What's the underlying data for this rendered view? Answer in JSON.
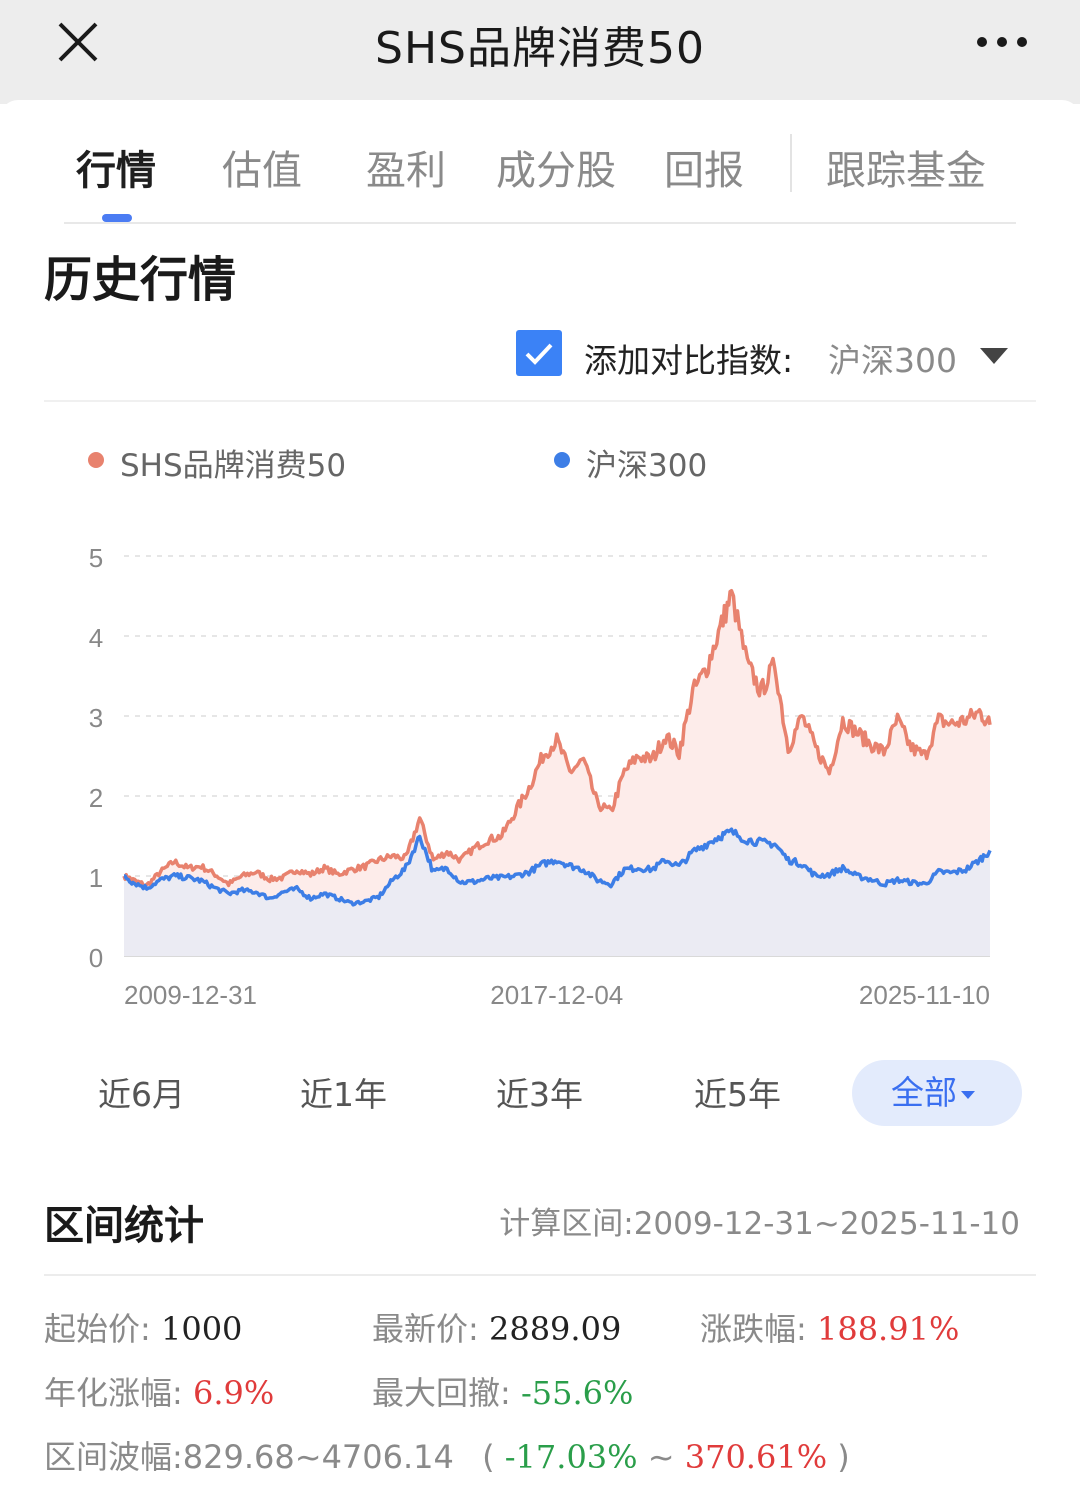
{
  "header": {
    "title": "SHS品牌消费50"
  },
  "tabs": [
    "行情",
    "估值",
    "盈利",
    "成分股",
    "回报",
    "跟踪基金"
  ],
  "section_title": "历史行情",
  "compare": {
    "label": "添加对比指数:",
    "selected": "沪深300",
    "checked": true
  },
  "colors": {
    "accent": "#3b82f6",
    "series_main": "#e8826e",
    "series_compare": "#3d7ee6",
    "up": "#e03b3b",
    "down": "#2a9e4a"
  },
  "chart_data": {
    "type": "line",
    "series": [
      {
        "name": "SHS品牌消费50",
        "color": "#e8826e",
        "x": [
          "2009-12-31",
          "2010-03-01",
          "2010-06-01",
          "2010-09-01",
          "2010-12-01",
          "2011-03-01",
          "2011-06-01",
          "2011-09-01",
          "2011-12-01",
          "2012-03-01",
          "2012-06-01",
          "2012-09-01",
          "2012-12-01",
          "2013-03-01",
          "2013-06-01",
          "2013-09-01",
          "2013-12-01",
          "2014-03-01",
          "2014-06-01",
          "2014-09-01",
          "2014-12-01",
          "2015-03-01",
          "2015-06-01",
          "2015-09-01",
          "2015-12-01",
          "2016-03-01",
          "2016-06-01",
          "2016-09-01",
          "2016-12-01",
          "2017-03-01",
          "2017-06-01",
          "2017-09-01",
          "2017-12-04",
          "2018-03-01",
          "2018-06-01",
          "2018-09-01",
          "2018-12-01",
          "2019-03-01",
          "2019-06-01",
          "2019-09-01",
          "2019-12-01",
          "2020-03-01",
          "2020-06-01",
          "2020-09-01",
          "2020-12-01",
          "2021-02-15",
          "2021-06-01",
          "2021-09-01",
          "2021-12-01",
          "2022-03-01",
          "2022-06-01",
          "2022-09-01",
          "2022-12-01",
          "2023-03-01",
          "2023-06-01",
          "2023-09-01",
          "2023-12-01",
          "2024-03-01",
          "2024-06-01",
          "2024-09-01",
          "2024-12-01",
          "2025-03-01",
          "2025-06-01",
          "2025-09-01",
          "2025-11-10"
        ],
        "values": [
          1.0,
          0.95,
          0.88,
          1.05,
          1.18,
          1.1,
          1.12,
          1.02,
          0.9,
          1.0,
          1.05,
          0.96,
          0.98,
          1.08,
          1.02,
          1.1,
          1.02,
          1.08,
          1.12,
          1.2,
          1.25,
          1.22,
          1.72,
          1.2,
          1.3,
          1.2,
          1.35,
          1.45,
          1.5,
          1.8,
          2.1,
          2.5,
          2.7,
          2.3,
          2.45,
          1.9,
          1.8,
          2.3,
          2.5,
          2.45,
          2.75,
          2.55,
          3.3,
          3.6,
          4.1,
          4.52,
          3.65,
          3.3,
          3.65,
          2.6,
          3.0,
          2.6,
          2.3,
          2.95,
          2.8,
          2.65,
          2.55,
          2.95,
          2.6,
          2.5,
          2.95,
          2.9,
          2.95,
          3.05,
          2.89
        ]
      },
      {
        "name": "沪深300",
        "color": "#3d7ee6",
        "x": [
          "2009-12-31",
          "2010-03-01",
          "2010-06-01",
          "2010-09-01",
          "2010-12-01",
          "2011-03-01",
          "2011-06-01",
          "2011-09-01",
          "2011-12-01",
          "2012-03-01",
          "2012-06-01",
          "2012-09-01",
          "2012-12-01",
          "2013-03-01",
          "2013-06-01",
          "2013-09-01",
          "2013-12-01",
          "2014-03-01",
          "2014-06-01",
          "2014-09-01",
          "2014-12-01",
          "2015-03-01",
          "2015-06-01",
          "2015-09-01",
          "2015-12-01",
          "2016-03-01",
          "2016-06-01",
          "2016-09-01",
          "2016-12-01",
          "2017-03-01",
          "2017-06-01",
          "2017-09-01",
          "2017-12-04",
          "2018-03-01",
          "2018-06-01",
          "2018-09-01",
          "2018-12-01",
          "2019-03-01",
          "2019-06-01",
          "2019-09-01",
          "2019-12-01",
          "2020-03-01",
          "2020-06-01",
          "2020-09-01",
          "2020-12-01",
          "2021-02-15",
          "2021-06-01",
          "2021-09-01",
          "2021-12-01",
          "2022-03-01",
          "2022-06-01",
          "2022-09-01",
          "2022-12-01",
          "2023-03-01",
          "2023-06-01",
          "2023-09-01",
          "2023-12-01",
          "2024-03-01",
          "2024-06-01",
          "2024-09-01",
          "2024-12-01",
          "2025-03-01",
          "2025-06-01",
          "2025-09-01",
          "2025-11-10"
        ],
        "values": [
          1.0,
          0.92,
          0.85,
          0.95,
          1.0,
          0.98,
          0.94,
          0.85,
          0.78,
          0.82,
          0.8,
          0.72,
          0.8,
          0.84,
          0.72,
          0.78,
          0.72,
          0.66,
          0.68,
          0.74,
          0.95,
          1.1,
          1.5,
          1.05,
          1.1,
          0.92,
          0.93,
          0.97,
          0.98,
          1.0,
          1.05,
          1.15,
          1.2,
          1.13,
          1.08,
          0.95,
          0.9,
          1.08,
          1.1,
          1.08,
          1.2,
          1.12,
          1.3,
          1.4,
          1.5,
          1.55,
          1.45,
          1.42,
          1.4,
          1.2,
          1.15,
          1.0,
          1.02,
          1.1,
          1.0,
          0.96,
          0.9,
          0.95,
          0.92,
          0.9,
          1.05,
          1.04,
          1.08,
          1.2,
          1.32
        ]
      }
    ],
    "ylim": [
      0,
      5
    ],
    "yticks": [
      "0",
      "1",
      "2",
      "3",
      "4",
      "5"
    ],
    "xticks": [
      "2009-12-31",
      "2017-12-04",
      "2025-11-10"
    ],
    "grid": true,
    "legend": "top"
  },
  "ranges": [
    "近6月",
    "近1年",
    "近3年",
    "近5年",
    "全部"
  ],
  "stats": {
    "title": "区间统计",
    "period": "计算区间:2009-12-31~2025-11-10",
    "start_label": "起始价:",
    "start_value": "1000",
    "latest_label": "最新价:",
    "latest_value": "2889.09",
    "change_label": "涨跌幅:",
    "change_value": "188.91%",
    "annual_label": "年化涨幅:",
    "annual_value": "6.9%",
    "drawdown_label": "最大回撤:",
    "drawdown_value": "-55.6%",
    "band_label": "区间波幅:829.68~4706.14",
    "band_low": "-17.03%",
    "band_tilde": "~",
    "band_high": "370.61%",
    "paren_open": "(",
    "paren_close": ")"
  }
}
